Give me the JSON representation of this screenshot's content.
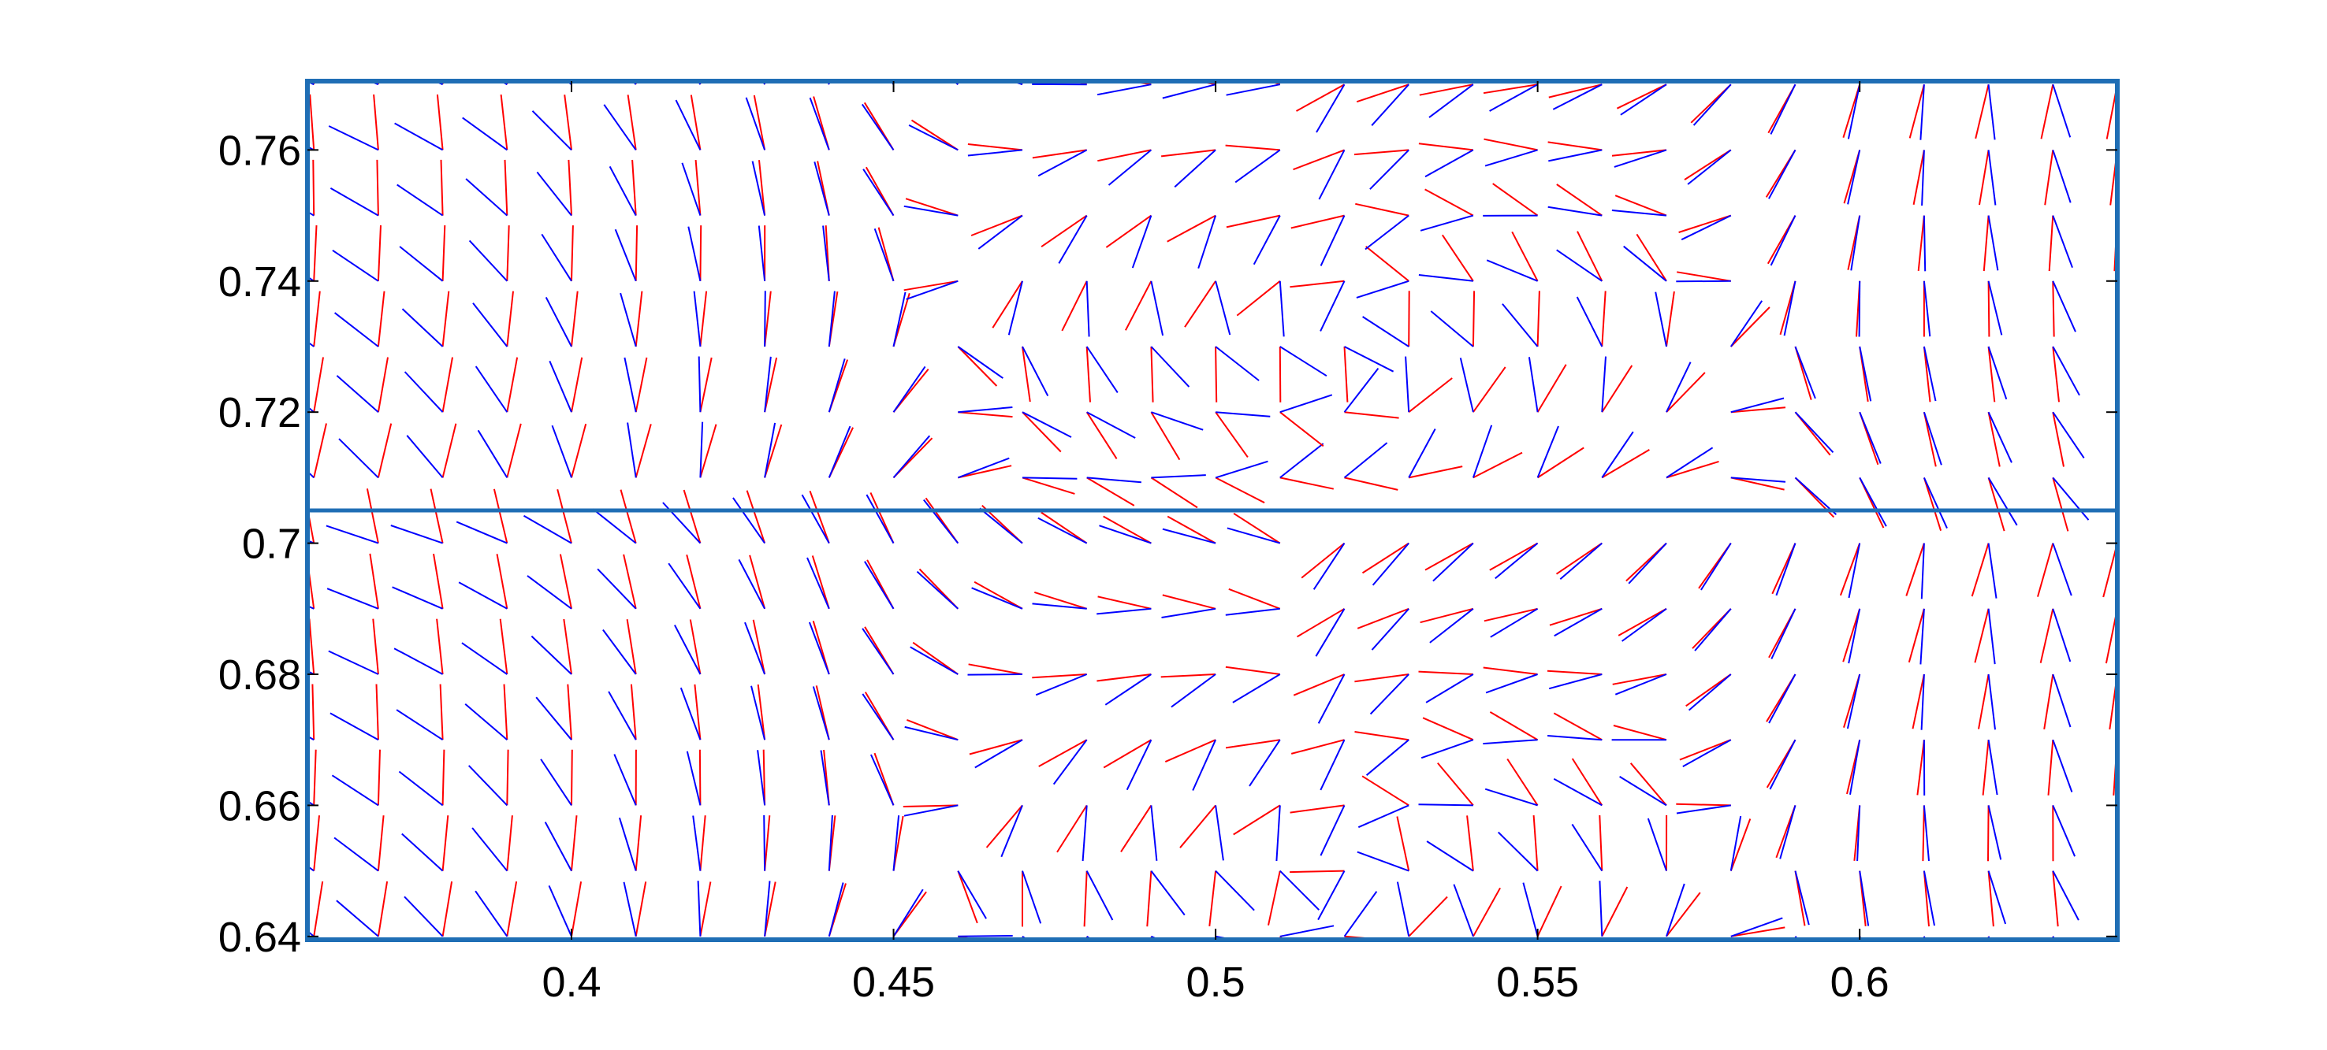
{
  "chart_data": {
    "type": "quiver",
    "title": "",
    "xlabel": "",
    "ylabel": "",
    "xlim": [
      0.359,
      0.64
    ],
    "ylim": [
      0.6395,
      0.7705
    ],
    "x_ticks": [
      0.4,
      0.45,
      0.5,
      0.55,
      0.6
    ],
    "x_tick_labels": [
      "0.4",
      "0.45",
      "0.5",
      "0.55",
      "0.6"
    ],
    "y_ticks": [
      0.64,
      0.66,
      0.68,
      0.7,
      0.72,
      0.74,
      0.76
    ],
    "y_tick_labels": [
      "0.64",
      "0.66",
      "0.68",
      "0.7",
      "0.72",
      "0.74",
      "0.76"
    ],
    "divider_y": 0.705,
    "grid": false,
    "legend": "none",
    "grid_x": [
      0.36,
      0.37,
      0.38,
      0.39,
      0.4,
      0.41,
      0.42,
      0.43,
      0.44,
      0.45,
      0.46,
      0.47,
      0.48,
      0.49,
      0.5,
      0.51,
      0.52,
      0.53,
      0.54,
      0.55,
      0.56,
      0.57,
      0.58,
      0.59,
      0.6,
      0.61,
      0.62,
      0.63,
      0.64
    ],
    "grid_y": [
      0.64,
      0.65,
      0.66,
      0.67,
      0.68,
      0.69,
      0.7,
      0.71,
      0.72,
      0.73,
      0.74,
      0.75,
      0.76,
      0.77
    ],
    "segment_length": 0.0085,
    "vortex_centers": [
      [
        0.52,
        0.73
      ],
      [
        0.52,
        0.648
      ]
    ],
    "series": [
      {
        "name": "",
        "color": "#ff0000",
        "role": "first segment of each glyph"
      },
      {
        "name": "",
        "color": "#0000ff",
        "role": "second segment of each glyph"
      }
    ],
    "colors": {
      "frame": "#1f6eb5",
      "red_segment": "#ff0000",
      "blue_segment": "#0000ff",
      "tick_text": "#000000",
      "background": "#ffffff"
    }
  }
}
